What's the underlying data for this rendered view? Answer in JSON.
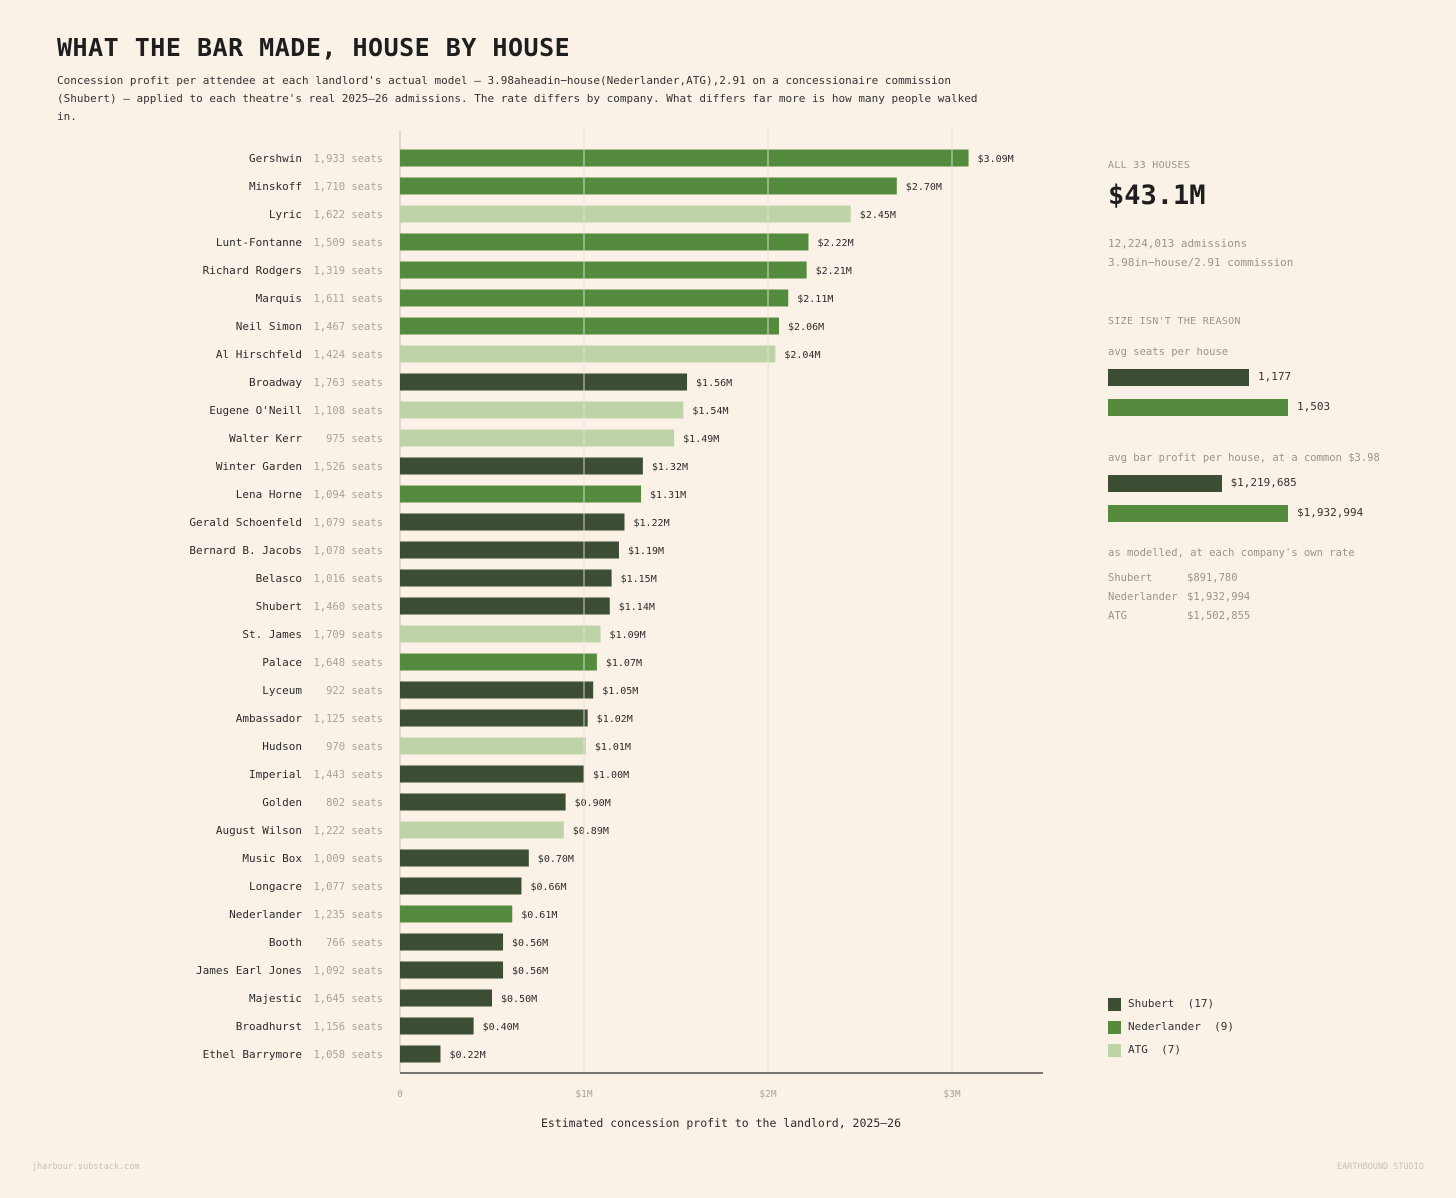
{
  "title": "WHAT THE BAR MADE, HOUSE BY HOUSE",
  "subtitle_line1": "Concession profit per attendee at each landlord's actual model — 3.98aheadin−house(Nederlander,ATG),2.91 on a concessionaire commission",
  "subtitle_line2": "(Shubert) — applied to each theatre's real 2025–26 admissions. The rate differs by company. What differs far more is how many people walked in.",
  "colors": {
    "Shubert": "#3c4d33",
    "Nederlander": "#558b3d",
    "ATG": "#bed4a8"
  },
  "chart_data": {
    "type": "bar",
    "orientation": "horizontal",
    "xlabel": "Estimated concession profit to the landlord, 2025–26",
    "xlim": [
      0,
      3.5
    ],
    "xticks": [
      0,
      1,
      2,
      3
    ],
    "xtick_labels": [
      "0",
      "$1M",
      "$2M",
      "$3M"
    ],
    "grid": true,
    "bars": [
      {
        "name": "Gershwin",
        "seats": "1,933 seats",
        "value": 3.09,
        "label": "$3.09M",
        "owner": "Nederlander"
      },
      {
        "name": "Minskoff",
        "seats": "1,710 seats",
        "value": 2.7,
        "label": "$2.70M",
        "owner": "Nederlander"
      },
      {
        "name": "Lyric",
        "seats": "1,622 seats",
        "value": 2.45,
        "label": "$2.45M",
        "owner": "ATG"
      },
      {
        "name": "Lunt-Fontanne",
        "seats": "1,509 seats",
        "value": 2.22,
        "label": "$2.22M",
        "owner": "Nederlander"
      },
      {
        "name": "Richard Rodgers",
        "seats": "1,319 seats",
        "value": 2.21,
        "label": "$2.21M",
        "owner": "Nederlander"
      },
      {
        "name": "Marquis",
        "seats": "1,611 seats",
        "value": 2.11,
        "label": "$2.11M",
        "owner": "Nederlander"
      },
      {
        "name": "Neil Simon",
        "seats": "1,467 seats",
        "value": 2.06,
        "label": "$2.06M",
        "owner": "Nederlander"
      },
      {
        "name": "Al Hirschfeld",
        "seats": "1,424 seats",
        "value": 2.04,
        "label": "$2.04M",
        "owner": "ATG"
      },
      {
        "name": "Broadway",
        "seats": "1,763 seats",
        "value": 1.56,
        "label": "$1.56M",
        "owner": "Shubert"
      },
      {
        "name": "Eugene O'Neill",
        "seats": "1,108 seats",
        "value": 1.54,
        "label": "$1.54M",
        "owner": "ATG"
      },
      {
        "name": "Walter Kerr",
        "seats": "975 seats",
        "value": 1.49,
        "label": "$1.49M",
        "owner": "ATG"
      },
      {
        "name": "Winter Garden",
        "seats": "1,526 seats",
        "value": 1.32,
        "label": "$1.32M",
        "owner": "Shubert"
      },
      {
        "name": "Lena Horne",
        "seats": "1,094 seats",
        "value": 1.31,
        "label": "$1.31M",
        "owner": "Nederlander"
      },
      {
        "name": "Gerald Schoenfeld",
        "seats": "1,079 seats",
        "value": 1.22,
        "label": "$1.22M",
        "owner": "Shubert"
      },
      {
        "name": "Bernard B. Jacobs",
        "seats": "1,078 seats",
        "value": 1.19,
        "label": "$1.19M",
        "owner": "Shubert"
      },
      {
        "name": "Belasco",
        "seats": "1,016 seats",
        "value": 1.15,
        "label": "$1.15M",
        "owner": "Shubert"
      },
      {
        "name": "Shubert",
        "seats": "1,460 seats",
        "value": 1.14,
        "label": "$1.14M",
        "owner": "Shubert"
      },
      {
        "name": "St. James",
        "seats": "1,709 seats",
        "value": 1.09,
        "label": "$1.09M",
        "owner": "ATG"
      },
      {
        "name": "Palace",
        "seats": "1,648 seats",
        "value": 1.07,
        "label": "$1.07M",
        "owner": "Nederlander"
      },
      {
        "name": "Lyceum",
        "seats": "922 seats",
        "value": 1.05,
        "label": "$1.05M",
        "owner": "Shubert"
      },
      {
        "name": "Ambassador",
        "seats": "1,125 seats",
        "value": 1.02,
        "label": "$1.02M",
        "owner": "Shubert"
      },
      {
        "name": "Hudson",
        "seats": "970 seats",
        "value": 1.01,
        "label": "$1.01M",
        "owner": "ATG"
      },
      {
        "name": "Imperial",
        "seats": "1,443 seats",
        "value": 1.0,
        "label": "$1.00M",
        "owner": "Shubert"
      },
      {
        "name": "Golden",
        "seats": "802 seats",
        "value": 0.9,
        "label": "$0.90M",
        "owner": "Shubert"
      },
      {
        "name": "August Wilson",
        "seats": "1,222 seats",
        "value": 0.89,
        "label": "$0.89M",
        "owner": "ATG"
      },
      {
        "name": "Music Box",
        "seats": "1,009 seats",
        "value": 0.7,
        "label": "$0.70M",
        "owner": "Shubert"
      },
      {
        "name": "Longacre",
        "seats": "1,077 seats",
        "value": 0.66,
        "label": "$0.66M",
        "owner": "Shubert"
      },
      {
        "name": "Nederlander",
        "seats": "1,235 seats",
        "value": 0.61,
        "label": "$0.61M",
        "owner": "Nederlander"
      },
      {
        "name": "Booth",
        "seats": "766 seats",
        "value": 0.56,
        "label": "$0.56M",
        "owner": "Shubert"
      },
      {
        "name": "James Earl Jones",
        "seats": "1,092 seats",
        "value": 0.56,
        "label": "$0.56M",
        "owner": "Shubert"
      },
      {
        "name": "Majestic",
        "seats": "1,645 seats",
        "value": 0.5,
        "label": "$0.50M",
        "owner": "Shubert"
      },
      {
        "name": "Broadhurst",
        "seats": "1,156 seats",
        "value": 0.4,
        "label": "$0.40M",
        "owner": "Shubert"
      },
      {
        "name": "Ethel Barrymore",
        "seats": "1,058 seats",
        "value": 0.22,
        "label": "$0.22M",
        "owner": "Shubert"
      }
    ]
  },
  "sidebar": {
    "all_label": "ALL 33 HOUSES",
    "total": "$43.1M",
    "admissions": "12,224,013 admissions",
    "rate_line": "3.98in−house/2.91 commission",
    "size_heading": "SIZE ISN'T THE REASON",
    "avg_seats_label": "avg seats per house",
    "avg_seats": [
      {
        "owner": "Shubert",
        "value": 1177,
        "label": "1,177"
      },
      {
        "owner": "Nederlander",
        "value": 1503,
        "label": "1,503"
      }
    ],
    "avg_profit_label": "avg bar profit per house, at a common $3.98",
    "avg_profit": [
      {
        "owner": "Shubert",
        "value": 1219685,
        "label": "$1,219,685"
      },
      {
        "owner": "Nederlander",
        "value": 1932994,
        "label": "$1,932,994"
      }
    ],
    "modelled_label": "as modelled, at each company's own rate",
    "modelled": [
      {
        "name": "Shubert",
        "value": "$891,780"
      },
      {
        "name": "Nederlander",
        "value": "$1,932,994"
      },
      {
        "name": "ATG",
        "value": "$1,502,855"
      }
    ]
  },
  "legend": [
    {
      "owner": "Shubert",
      "label": "Shubert  (17)"
    },
    {
      "owner": "Nederlander",
      "label": "Nederlander  (9)"
    },
    {
      "owner": "ATG",
      "label": "ATG  (7)"
    }
  ],
  "footer_left": "jharbour.substack.com",
  "footer_right": "EARTHBOUND STUDIO"
}
